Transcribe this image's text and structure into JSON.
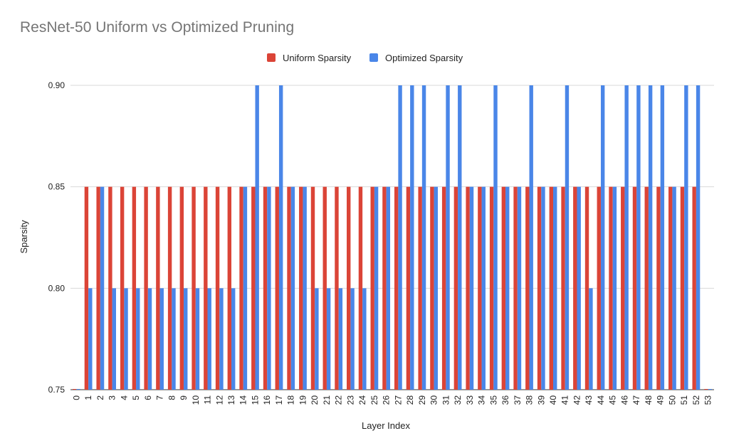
{
  "chart_data": {
    "type": "bar",
    "title": "ResNet-50 Uniform vs Optimized Pruning",
    "xlabel": "Layer Index",
    "ylabel": "Sparsity",
    "ylim": [
      0.75,
      0.9
    ],
    "yticks": [
      "0.75",
      "0.80",
      "0.85",
      "0.90"
    ],
    "grid": true,
    "legend_position": "top",
    "categories": [
      "0",
      "1",
      "2",
      "3",
      "4",
      "5",
      "6",
      "7",
      "8",
      "9",
      "10",
      "11",
      "12",
      "13",
      "14",
      "15",
      "16",
      "17",
      "18",
      "19",
      "20",
      "21",
      "22",
      "23",
      "24",
      "25",
      "26",
      "27",
      "28",
      "29",
      "30",
      "31",
      "32",
      "33",
      "34",
      "35",
      "36",
      "37",
      "38",
      "39",
      "40",
      "41",
      "42",
      "43",
      "44",
      "45",
      "46",
      "47",
      "48",
      "49",
      "50",
      "51",
      "52",
      "53"
    ],
    "series": [
      {
        "name": "Uniform Sparsity",
        "color": "#db4437",
        "values": [
          0.75,
          0.85,
          0.85,
          0.85,
          0.85,
          0.85,
          0.85,
          0.85,
          0.85,
          0.85,
          0.85,
          0.85,
          0.85,
          0.85,
          0.85,
          0.85,
          0.85,
          0.85,
          0.85,
          0.85,
          0.85,
          0.85,
          0.85,
          0.85,
          0.85,
          0.85,
          0.85,
          0.85,
          0.85,
          0.85,
          0.85,
          0.85,
          0.85,
          0.85,
          0.85,
          0.85,
          0.85,
          0.85,
          0.85,
          0.85,
          0.85,
          0.85,
          0.85,
          0.85,
          0.85,
          0.85,
          0.85,
          0.85,
          0.85,
          0.85,
          0.85,
          0.85,
          0.85,
          0.75
        ]
      },
      {
        "name": "Optimized Sparsity",
        "color": "#4a86e8",
        "values": [
          0.75,
          0.8,
          0.85,
          0.8,
          0.8,
          0.8,
          0.8,
          0.8,
          0.8,
          0.8,
          0.8,
          0.8,
          0.8,
          0.8,
          0.85,
          0.9,
          0.85,
          0.9,
          0.85,
          0.85,
          0.8,
          0.8,
          0.8,
          0.8,
          0.8,
          0.85,
          0.85,
          0.9,
          0.9,
          0.9,
          0.85,
          0.9,
          0.9,
          0.85,
          0.85,
          0.9,
          0.85,
          0.85,
          0.9,
          0.85,
          0.85,
          0.9,
          0.85,
          0.8,
          0.9,
          0.85,
          0.9,
          0.9,
          0.9,
          0.9,
          0.85,
          0.9,
          0.9,
          0.75
        ]
      }
    ]
  }
}
